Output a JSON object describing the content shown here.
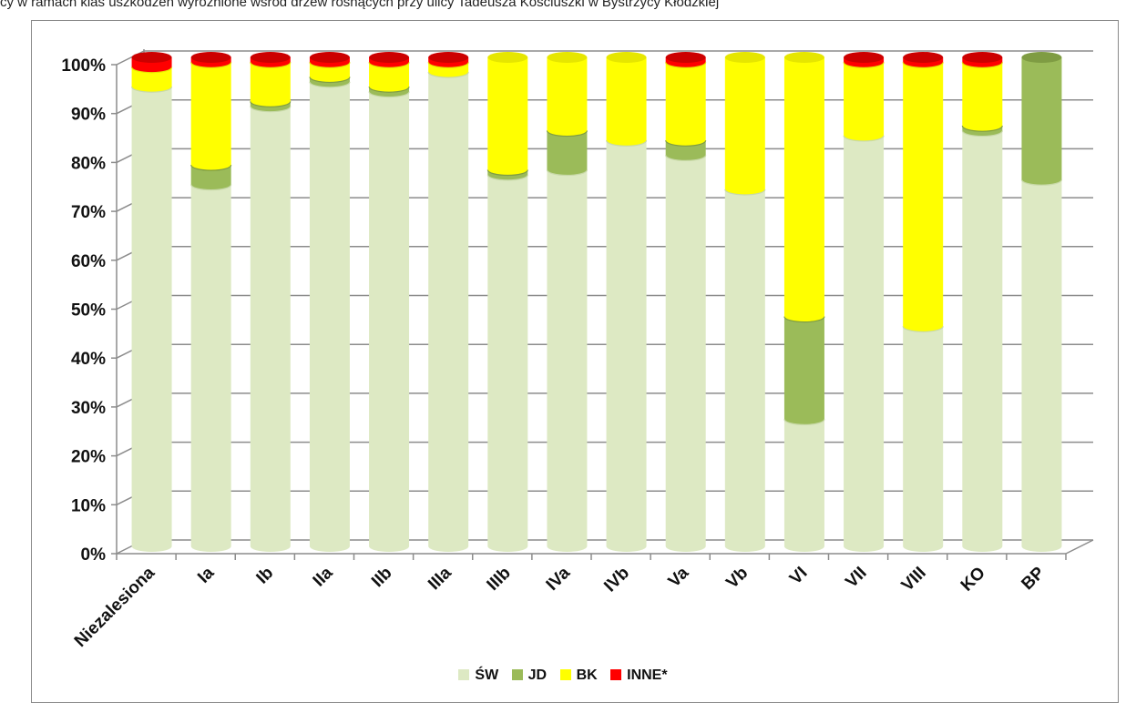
{
  "header_text": "cy w ramach klas uszkodzeń wyróżnione wśród drzew rosnących przy ulicy Tadeusza Kościuszki w Bystrzycy Kłodzkiej",
  "colors": {
    "SW": "#dde9c3",
    "JD": "#9bbb59",
    "BK": "#ffff00",
    "INNE": "#ff0000",
    "grid": "#8c8c8c"
  },
  "chart_data": {
    "type": "bar",
    "stacked": true,
    "percent": true,
    "title": "",
    "xlabel": "",
    "ylabel": "",
    "ylim": [
      0,
      100
    ],
    "yticks": [
      "0%",
      "10%",
      "20%",
      "30%",
      "40%",
      "50%",
      "60%",
      "70%",
      "80%",
      "90%",
      "100%"
    ],
    "grid": true,
    "legend_position": "bottom",
    "categories": [
      "Niezalesiona",
      "Ia",
      "Ib",
      "IIa",
      "IIb",
      "IIIa",
      "IIIb",
      "IVa",
      "IVb",
      "Va",
      "Vb",
      "VI",
      "VII",
      "VIII",
      "KO",
      "BP"
    ],
    "series": [
      {
        "name": "ŚW",
        "values": [
          94,
          74,
          90,
          95,
          93,
          97,
          76,
          77,
          83,
          80,
          73,
          26,
          84,
          45,
          85,
          75
        ]
      },
      {
        "name": "JD",
        "values": [
          0,
          4,
          1,
          1,
          1,
          0,
          1,
          8,
          0,
          3,
          0,
          21,
          0,
          0,
          1,
          25
        ]
      },
      {
        "name": "BK",
        "values": [
          4,
          21,
          8,
          3,
          5,
          2,
          23,
          15,
          17,
          16,
          27,
          53,
          15,
          54,
          13,
          0
        ]
      },
      {
        "name": "INNE*",
        "values": [
          2,
          1,
          1,
          1,
          1,
          1,
          0,
          0,
          0,
          1,
          0,
          0,
          1,
          1,
          1,
          0
        ]
      }
    ]
  }
}
